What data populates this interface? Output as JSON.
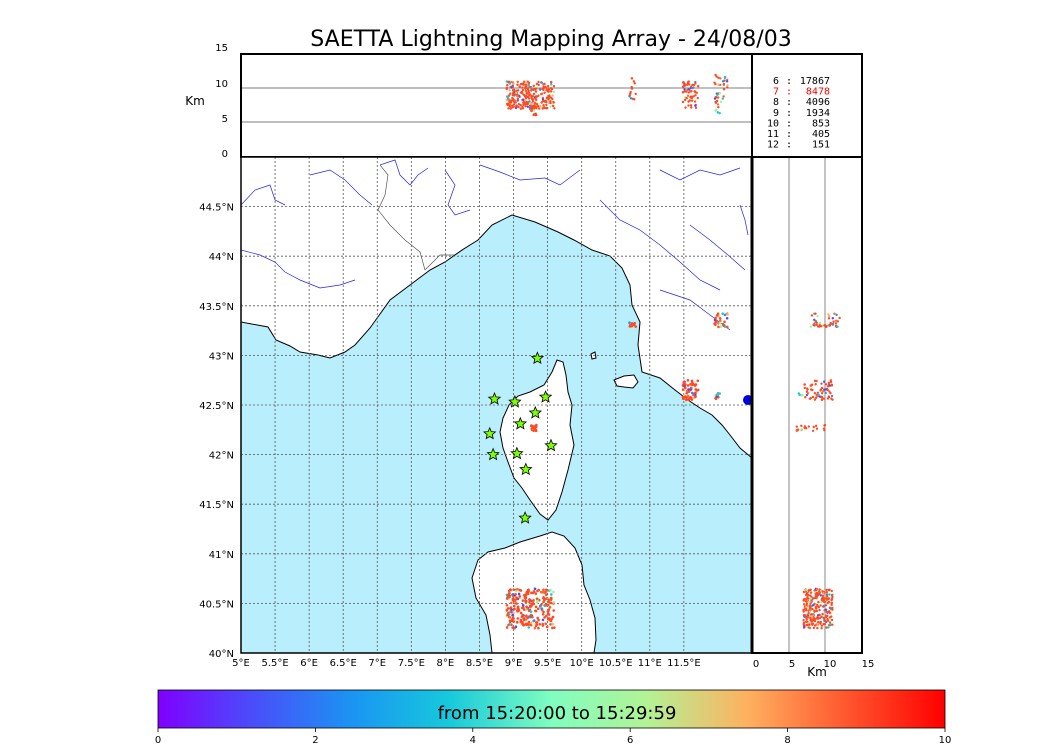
{
  "title": "SAETTA Lightning Mapping Array - 24/08/03",
  "colors": {
    "sea": "#b9eefc",
    "land": "#ffffff",
    "coast": "#000000",
    "river": "#2222ee",
    "border": "#555555",
    "grid": "#555555",
    "star_fill": "#7cff00",
    "highlight": "#ff0000"
  },
  "map": {
    "lon_range": [
      5,
      12.5
    ],
    "lat_range": [
      40,
      45
    ],
    "lon_ticks": [
      "5°E",
      "5.5°E",
      "6°E",
      "6.5°E",
      "7°E",
      "7.5°E",
      "8°E",
      "8.5°E",
      "9°E",
      "9.5°E",
      "10°E",
      "10.5°E",
      "11°E",
      "11.5°E"
    ],
    "lat_ticks": [
      "40°N",
      "40.5°N",
      "41°N",
      "41.5°N",
      "42°N",
      "42.5°N",
      "43°N",
      "43.5°N",
      "44°N",
      "44.5°N"
    ],
    "stations": [
      {
        "lon": 9.35,
        "lat": 42.97
      },
      {
        "lon": 8.72,
        "lat": 42.56
      },
      {
        "lon": 9.02,
        "lat": 42.53
      },
      {
        "lon": 9.47,
        "lat": 42.58
      },
      {
        "lon": 9.1,
        "lat": 42.31
      },
      {
        "lon": 9.32,
        "lat": 42.42
      },
      {
        "lon": 8.65,
        "lat": 42.21
      },
      {
        "lon": 9.55,
        "lat": 42.09
      },
      {
        "lon": 8.7,
        "lat": 42.0
      },
      {
        "lon": 9.05,
        "lat": 42.01
      },
      {
        "lon": 9.18,
        "lat": 41.85
      },
      {
        "lon": 9.17,
        "lat": 41.36
      }
    ]
  },
  "alt_panel": {
    "ylabel": "Km",
    "y_ticks": [
      "0",
      "5",
      "10",
      "15"
    ]
  },
  "side_panel": {
    "xlabel": "Km",
    "x_ticks": [
      "0",
      "5",
      "10",
      "15"
    ]
  },
  "station_stats": [
    {
      "n": "6",
      "count": "17867",
      "highlight": false
    },
    {
      "n": "7",
      "count": "8478",
      "highlight": true
    },
    {
      "n": "8",
      "count": "4096",
      "highlight": false
    },
    {
      "n": "9",
      "count": "1934",
      "highlight": false
    },
    {
      "n": "10",
      "count": "853",
      "highlight": false
    },
    {
      "n": "11",
      "count": "405",
      "highlight": false
    },
    {
      "n": "12",
      "count": "151",
      "highlight": false
    }
  ],
  "colorbar": {
    "label": "from 15:20:00 to 15:29:59",
    "ticks": [
      "0",
      "2",
      "4",
      "6",
      "8",
      "10"
    ],
    "range": [
      0,
      10
    ]
  },
  "clusters": [
    {
      "lon": 9.25,
      "lat": 40.45,
      "spread_lon": 0.35,
      "spread_lat": 0.2,
      "alt": 9,
      "n": 260,
      "mix": 0.7
    },
    {
      "lon": 9.3,
      "lat": 42.27,
      "spread_lon": 0.04,
      "spread_lat": 0.03,
      "alt": 8,
      "n": 20,
      "mix": 0.9
    },
    {
      "lon": 10.75,
      "lat": 43.31,
      "spread_lon": 0.05,
      "spread_lat": 0.02,
      "alt": 9.5,
      "n": 14,
      "mix": 0.9
    },
    {
      "lon": 11.6,
      "lat": 42.65,
      "spread_lon": 0.12,
      "spread_lat": 0.1,
      "alt": 9,
      "n": 60,
      "mix": 0.6
    },
    {
      "lon": 12.05,
      "lat": 43.35,
      "spread_lon": 0.1,
      "spread_lat": 0.08,
      "alt": 10,
      "n": 30,
      "mix": 0.4
    },
    {
      "lon": 12.0,
      "lat": 42.6,
      "spread_lon": 0.04,
      "spread_lat": 0.04,
      "alt": 8,
      "n": 10,
      "mix": 0.2
    }
  ]
}
